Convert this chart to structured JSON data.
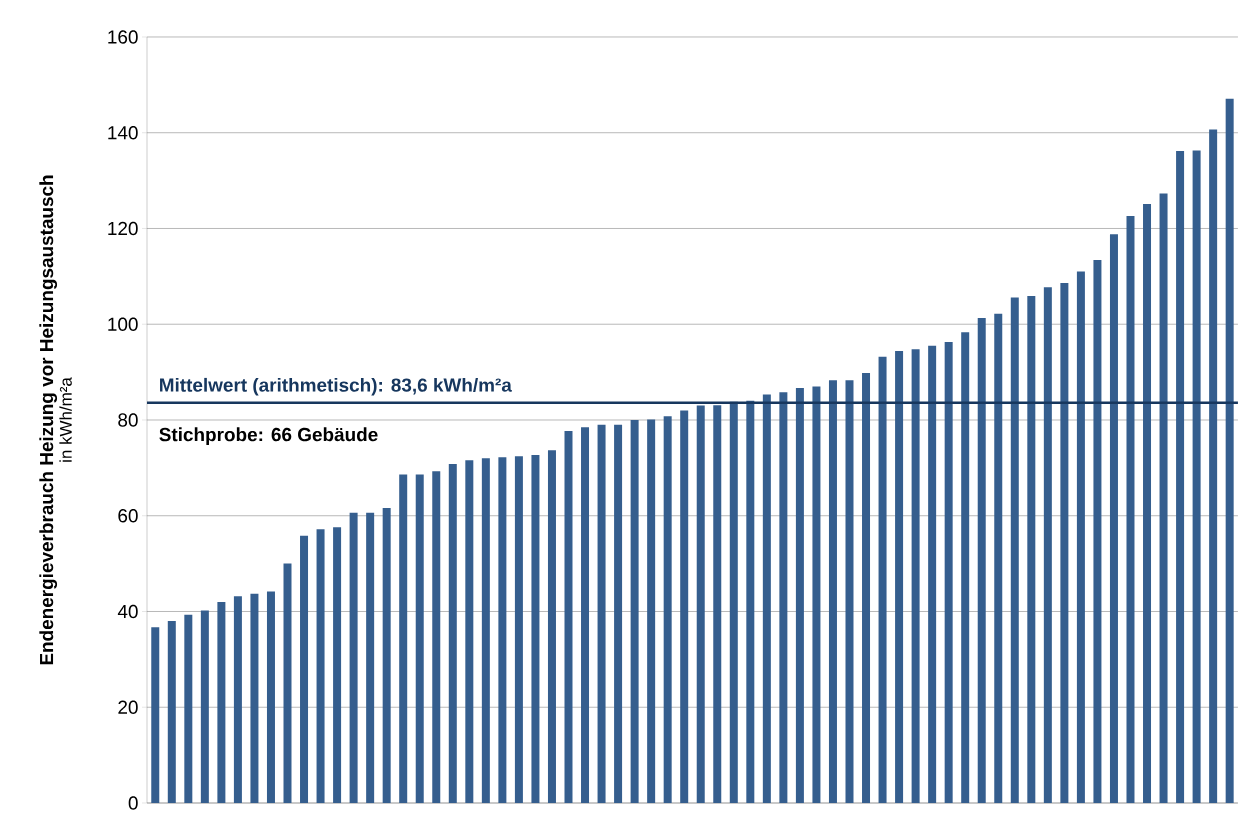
{
  "chart_data": {
    "type": "bar",
    "ylabel": "Endenergieverbrauch Heizung vor Heizungsaustausch",
    "categories": [
      null,
      null,
      null,
      null,
      null,
      null,
      null,
      null,
      null,
      null,
      null,
      null,
      null,
      null,
      null,
      null,
      null,
      null,
      null,
      null,
      null,
      null,
      null,
      null,
      null,
      null,
      null,
      null,
      null,
      null,
      null,
      null,
      null,
      null,
      null,
      null,
      null,
      null,
      null,
      null,
      null,
      null,
      null,
      null,
      null,
      null,
      null,
      null,
      null,
      null,
      null,
      null,
      null,
      null,
      null,
      null,
      null,
      null,
      null,
      null,
      null,
      null,
      null,
      null,
      null,
      null
    ],
    "values": [
      36.7,
      38,
      39.3,
      40.2,
      42,
      43.2,
      43.7,
      44.2,
      50,
      55.8,
      57.2,
      57.6,
      60.6,
      60.6,
      61.6,
      68.6,
      68.6,
      69.3,
      70.8,
      71.6,
      72,
      72.2,
      72.4,
      72.7,
      73.7,
      77.7,
      78.5,
      79,
      79,
      80,
      80.1,
      80.8,
      82,
      83,
      83.1,
      83.8,
      84,
      85.3,
      85.8,
      86.7,
      87,
      88.3,
      88.3,
      89.8,
      93.2,
      94.4,
      94.8,
      95.5,
      96.3,
      98.3,
      101.3,
      102.2,
      105.6,
      105.9,
      107.7,
      108.6,
      111,
      113.4,
      118.8,
      122.6,
      125.1,
      127.3,
      136.2,
      136.3,
      140.7,
      147.1
    ],
    "color": "#355e8e",
    "ylim": [
      0,
      160
    ],
    "yticks": [
      0,
      20,
      40,
      60,
      80,
      100,
      120,
      140,
      160
    ],
    "grid": "y",
    "ref_lines": [
      {
        "axis": "y",
        "value": 83.6,
        "label": "Mittelwert (arithmetisch): 83,6 kWh/m²a",
        "color": "#17375e"
      }
    ],
    "annotations": [
      "in kWh/m²a",
      "Stichprobe: 66 Gebäude"
    ]
  }
}
